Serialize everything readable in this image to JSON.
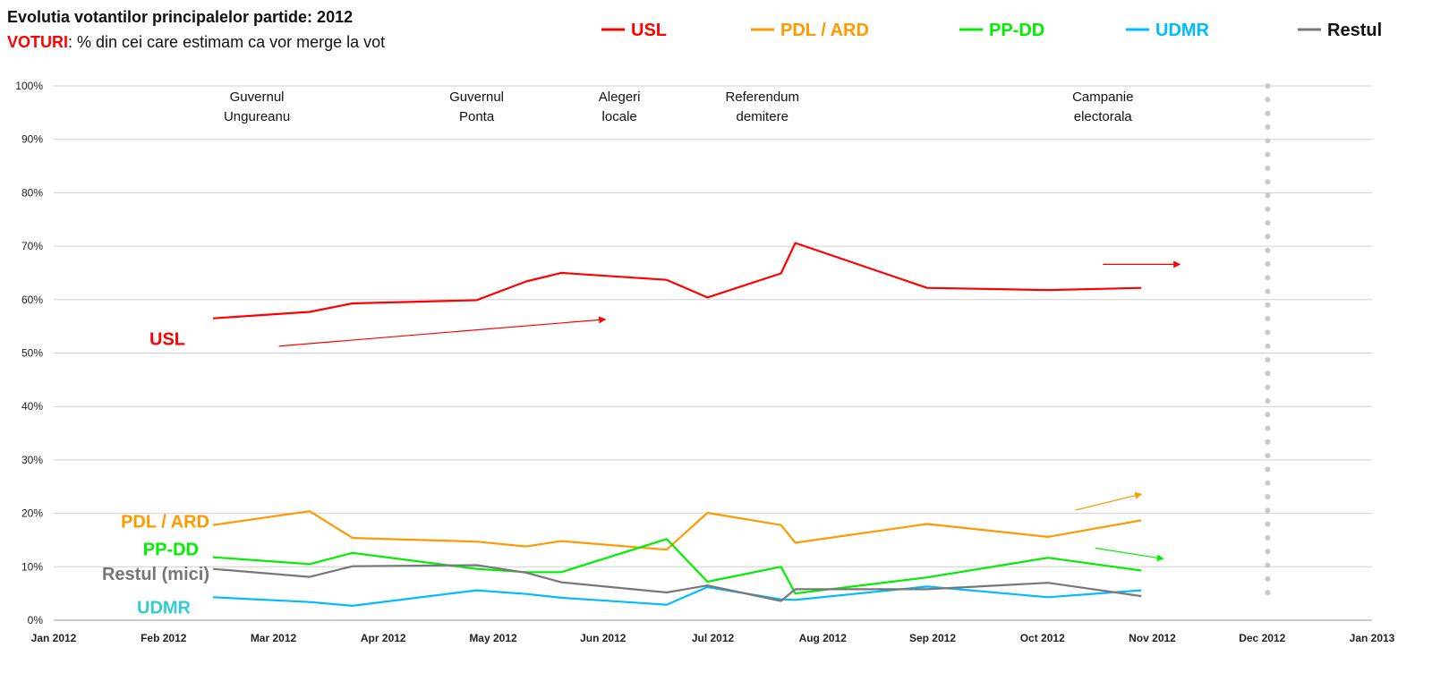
{
  "header": {
    "title": "Evolutia votantilor principalelor partide: 2012",
    "subtitle_highlight": "VOTURI",
    "subtitle_rest": ": % din cei care estimam ca vor merge la vot"
  },
  "chart_data": {
    "type": "line",
    "title": "Evolutia votantilor principalelor partide: 2012",
    "subtitle": "VOTURI: % din cei care estimam ca vor merge la vot",
    "ylabel": "%",
    "ylim": [
      0,
      100
    ],
    "y_ticks": [
      "0%",
      "10%",
      "20%",
      "30%",
      "40%",
      "50%",
      "60%",
      "70%",
      "80%",
      "90%",
      "100%"
    ],
    "x_ticks": [
      "Jan 2012",
      "Feb 2012",
      "Mar 2012",
      "Apr 2012",
      "May 2012",
      "Jun 2012",
      "Jul 2012",
      "Aug 2012",
      "Sep 2012",
      "Oct 2012",
      "Nov 2012",
      "Dec 2012",
      "Jan 2013"
    ],
    "x_range_months": [
      0,
      12
    ],
    "grid": true,
    "legend": {
      "position": "top",
      "entries": [
        {
          "name": "USL",
          "color": "#ff0000"
        },
        {
          "name": "PDL / ARD",
          "color": "#ff9900"
        },
        {
          "name": "PP-DD",
          "color": "#00ee00"
        },
        {
          "name": "UDMR",
          "color": "#00bbff"
        },
        {
          "name": "Restul",
          "color": "#777777"
        }
      ]
    },
    "series": [
      {
        "name": "USL",
        "inline_label": "USL",
        "color": "#ff0000",
        "label_color": "#ff0000",
        "points": [
          [
            1.45,
            56.5
          ],
          [
            2.33,
            57.7
          ],
          [
            2.72,
            59.3
          ],
          [
            3.85,
            59.9
          ],
          [
            4.3,
            63.4
          ],
          [
            4.62,
            65.0
          ],
          [
            5.58,
            63.7
          ],
          [
            5.95,
            60.4
          ],
          [
            6.62,
            64.9
          ],
          [
            6.75,
            70.6
          ],
          [
            7.95,
            62.2
          ],
          [
            9.05,
            61.8
          ],
          [
            9.9,
            62.2
          ]
        ]
      },
      {
        "name": "PDL / ARD",
        "inline_label": "PDL / ARD",
        "color": "#ff9900",
        "label_color": "#ff9900",
        "points": [
          [
            1.45,
            17.8
          ],
          [
            2.33,
            20.4
          ],
          [
            2.72,
            15.4
          ],
          [
            3.85,
            14.7
          ],
          [
            4.3,
            13.8
          ],
          [
            4.62,
            14.8
          ],
          [
            5.58,
            13.2
          ],
          [
            5.95,
            20.1
          ],
          [
            6.62,
            17.8
          ],
          [
            6.75,
            14.5
          ],
          [
            7.95,
            18.0
          ],
          [
            9.05,
            15.6
          ],
          [
            9.9,
            18.7
          ]
        ]
      },
      {
        "name": "PP-DD",
        "inline_label": "PP-DD",
        "color": "#00ee00",
        "label_color": "#00ee00",
        "points": [
          [
            1.45,
            11.8
          ],
          [
            2.33,
            10.5
          ],
          [
            2.72,
            12.6
          ],
          [
            3.85,
            9.6
          ],
          [
            4.3,
            9.0
          ],
          [
            4.62,
            9.0
          ],
          [
            5.58,
            15.2
          ],
          [
            5.95,
            7.2
          ],
          [
            6.62,
            10.0
          ],
          [
            6.75,
            5.0
          ],
          [
            7.95,
            8.0
          ],
          [
            9.05,
            11.7
          ],
          [
            9.9,
            9.3
          ]
        ]
      },
      {
        "name": "UDMR",
        "inline_label": "UDMR",
        "color": "#00bbff",
        "label_color": "#33cccc",
        "points": [
          [
            1.45,
            4.3
          ],
          [
            2.33,
            3.4
          ],
          [
            2.72,
            2.7
          ],
          [
            3.85,
            5.6
          ],
          [
            4.3,
            4.9
          ],
          [
            4.62,
            4.2
          ],
          [
            5.58,
            2.9
          ],
          [
            5.95,
            6.2
          ],
          [
            6.62,
            3.9
          ],
          [
            6.75,
            3.8
          ],
          [
            7.95,
            6.3
          ],
          [
            9.05,
            4.3
          ],
          [
            9.9,
            5.6
          ]
        ]
      },
      {
        "name": "Restul",
        "inline_label": "Restul (mici)",
        "color": "#777777",
        "label_color": "#777777",
        "points": [
          [
            1.45,
            9.6
          ],
          [
            2.33,
            8.1
          ],
          [
            2.72,
            10.1
          ],
          [
            3.85,
            10.3
          ],
          [
            4.3,
            8.9
          ],
          [
            4.62,
            7.1
          ],
          [
            5.58,
            5.2
          ],
          [
            5.95,
            6.5
          ],
          [
            6.62,
            3.6
          ],
          [
            6.75,
            5.8
          ],
          [
            7.95,
            5.8
          ],
          [
            9.05,
            7.0
          ],
          [
            9.9,
            4.5
          ]
        ]
      }
    ],
    "events": [
      {
        "line1": "Guvernul",
        "line2": "Ungureanu",
        "month": 1.85
      },
      {
        "line1": "Guvernul",
        "line2": "Ponta",
        "month": 3.85
      },
      {
        "line1": "Alegeri",
        "line2": "locale",
        "month": 5.15
      },
      {
        "line1": "Referendum",
        "line2": "demitere",
        "month": 6.45
      },
      {
        "line1": "Campanie",
        "line2": "electorala",
        "month": 9.55
      }
    ],
    "trend_arrows": [
      {
        "series": "USL",
        "from": [
          2.05,
          51.3
        ],
        "to": [
          5.02,
          56.3
        ]
      },
      {
        "series": "USL",
        "from": [
          9.55,
          66.6
        ],
        "to": [
          10.25,
          66.6
        ]
      },
      {
        "series": "PDL / ARD",
        "from": [
          9.3,
          20.6
        ],
        "to": [
          9.9,
          23.6
        ]
      },
      {
        "series": "PP-DD",
        "from": [
          9.48,
          13.5
        ],
        "to": [
          10.1,
          11.5
        ]
      }
    ],
    "dotted_marker_month": 11.05
  }
}
